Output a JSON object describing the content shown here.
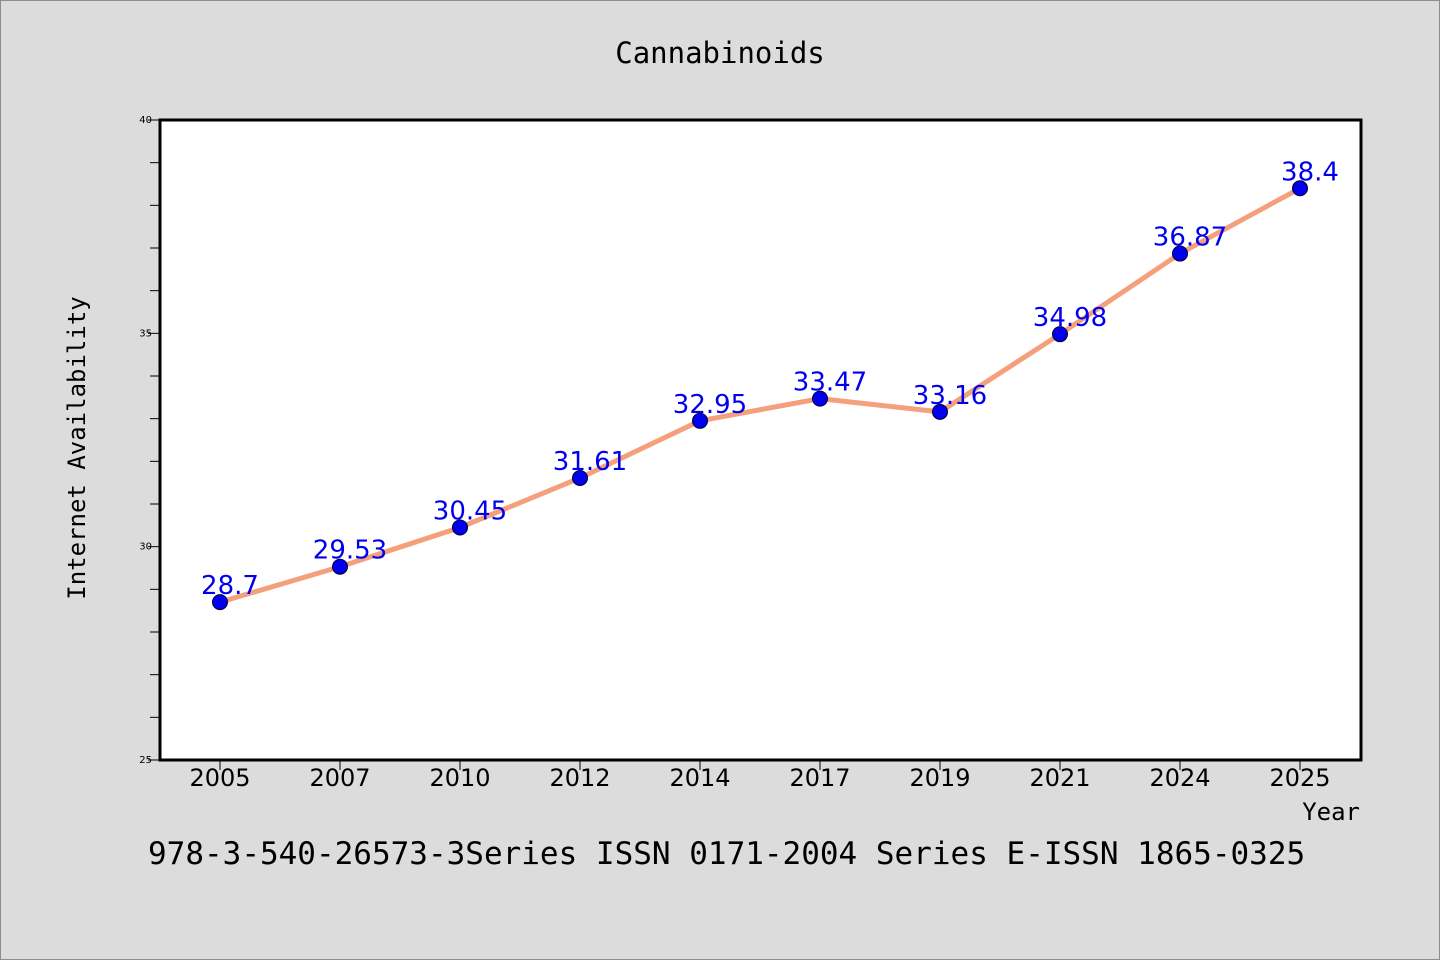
{
  "chart_data": {
    "type": "line",
    "title": "Cannabinoids",
    "xlabel": "Year",
    "ylabel": "Internet Availability",
    "categories": [
      "2005",
      "2007",
      "2010",
      "2012",
      "2014",
      "2017",
      "2019",
      "2021",
      "2024",
      "2025"
    ],
    "series": [
      {
        "values": [
          28.7,
          29.53,
          30.45,
          31.61,
          32.95,
          33.47,
          33.16,
          34.98,
          36.87,
          38.4
        ],
        "labels": [
          "28.7",
          "29.53",
          "30.45",
          "31.61",
          "32.95",
          "33.47",
          "33.16",
          "34.98",
          "36.87",
          "38.4"
        ],
        "line_color": "#f4a07c",
        "marker_color": "#0000ee",
        "label_color": "#0000ee"
      }
    ],
    "ylim": [
      25,
      40
    ],
    "yticks": [
      "25",
      "30",
      "35",
      "40"
    ],
    "grid": false,
    "legend": "none"
  },
  "footer": "978-3-540-26573-3Series ISSN 0171-2004 Series E-ISSN 1865-0325"
}
